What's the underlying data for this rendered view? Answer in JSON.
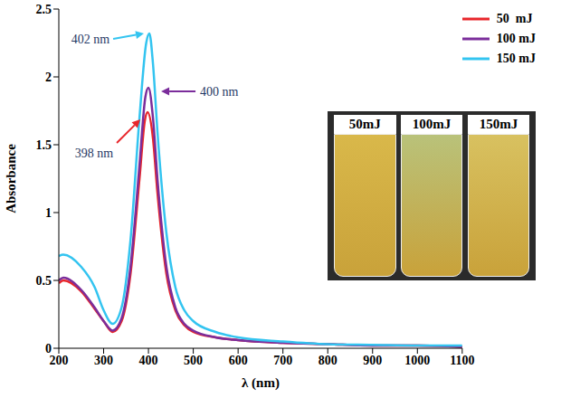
{
  "chart_data": {
    "type": "line",
    "x_label": "λ (nm)",
    "y_label": "Absorbance",
    "xlim": [
      200,
      1100
    ],
    "xticks": [
      200,
      300,
      400,
      500,
      600,
      700,
      800,
      900,
      1000,
      1100
    ],
    "ylim": [
      0,
      2.5
    ],
    "yticks": [
      0,
      0.5,
      1,
      1.5,
      2,
      2.5
    ],
    "grid": false,
    "legend": "top-right",
    "series": [
      {
        "name": "50  mJ",
        "color": "#e8262b",
        "x": [
          200,
          210,
          250,
          280,
          300,
          320,
          340,
          360,
          380,
          392,
          398,
          410,
          420,
          440,
          460,
          480,
          500,
          550,
          600,
          700,
          800,
          900,
          1000,
          1100
        ],
        "values": [
          0.48,
          0.5,
          0.42,
          0.29,
          0.2,
          0.12,
          0.2,
          0.55,
          1.25,
          1.68,
          1.74,
          1.55,
          1.15,
          0.55,
          0.28,
          0.17,
          0.12,
          0.08,
          0.06,
          0.04,
          0.03,
          0.02,
          0.02,
          0.01
        ]
      },
      {
        "name": "100 mJ",
        "color": "#7b2d9b",
        "x": [
          200,
          210,
          250,
          280,
          300,
          320,
          340,
          360,
          380,
          393,
          400,
          410,
          420,
          440,
          460,
          480,
          500,
          550,
          600,
          700,
          800,
          900,
          1000,
          1100
        ],
        "values": [
          0.5,
          0.52,
          0.43,
          0.3,
          0.2,
          0.13,
          0.22,
          0.6,
          1.35,
          1.85,
          1.92,
          1.7,
          1.25,
          0.6,
          0.3,
          0.18,
          0.13,
          0.08,
          0.06,
          0.04,
          0.03,
          0.02,
          0.02,
          0.01
        ]
      },
      {
        "name": "150 mJ",
        "color": "#33c4f0",
        "x": [
          200,
          210,
          250,
          280,
          300,
          320,
          340,
          360,
          380,
          395,
          402,
          410,
          420,
          440,
          460,
          480,
          500,
          550,
          600,
          700,
          800,
          900,
          1000,
          1100
        ],
        "values": [
          0.68,
          0.69,
          0.6,
          0.45,
          0.28,
          0.18,
          0.3,
          0.8,
          1.7,
          2.25,
          2.32,
          2.1,
          1.6,
          0.85,
          0.45,
          0.28,
          0.2,
          0.12,
          0.08,
          0.05,
          0.03,
          0.025,
          0.02,
          0.02
        ]
      }
    ],
    "annotations": [
      {
        "text": "402 nm",
        "x": 402,
        "y": 2.32,
        "color": "#33c4f0"
      },
      {
        "text": "400 nm",
        "x": 400,
        "y": 1.92,
        "color": "#7b2d9b"
      },
      {
        "text": "398 nm",
        "x": 398,
        "y": 1.74,
        "color": "#e8262b"
      }
    ],
    "inset_labels": [
      "50mJ",
      "100mJ",
      "150mJ"
    ]
  }
}
